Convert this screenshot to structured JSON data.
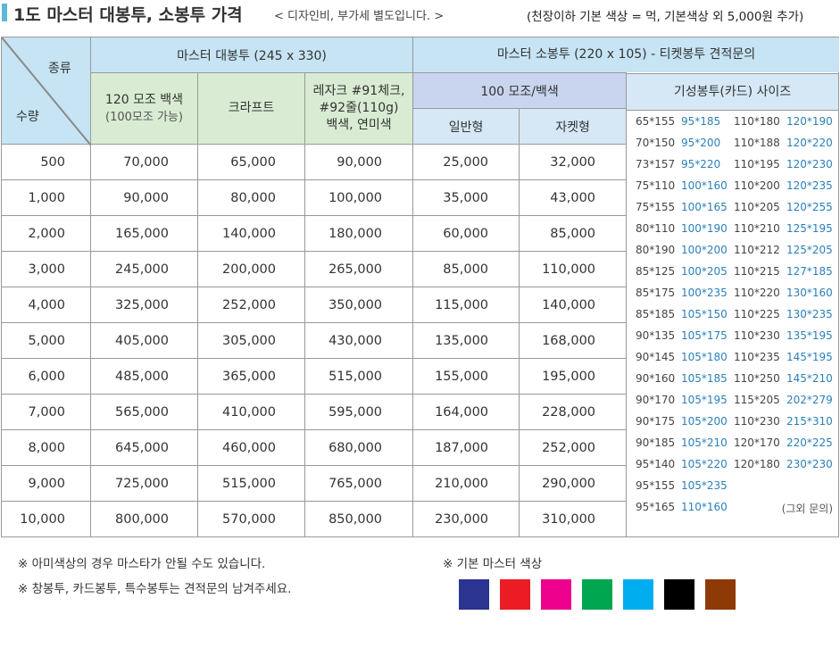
{
  "header": {
    "title": "1도 마스터 대봉투, 소봉투 가격",
    "subtitle": "< 디자인비, 부가세 별도입니다. >",
    "note": "(천장이하 기본 색상 = 먹, 기본색상 외 5,000원 추가)"
  },
  "table": {
    "corner_top": "종류",
    "corner_bottom": "수량",
    "group_large": "마스터 대봉투 (245 x 330)",
    "group_small": "마스터 소봉투 (220 x 105) - 티켓봉투 견적문의",
    "col_120": "120 모조 백색",
    "col_120_sub": "(100모조 가능)",
    "col_kraft": "크라프트",
    "col_lazak_1": "레자크 #91체크,",
    "col_lazak_2": "#92줄(110g)",
    "col_lazak_3": "백색, 연미색",
    "col_100": "100 모조/백색",
    "col_normal": "일반형",
    "col_jacket": "자켓형",
    "col_sizes": "기성봉투(카드) 사이즈",
    "rows": [
      {
        "qty": "500",
        "m120": "70,000",
        "kraft": "65,000",
        "lazak": "90,000",
        "normal": "25,000",
        "jacket": "32,000"
      },
      {
        "qty": "1,000",
        "m120": "90,000",
        "kraft": "80,000",
        "lazak": "100,000",
        "normal": "35,000",
        "jacket": "43,000"
      },
      {
        "qty": "2,000",
        "m120": "165,000",
        "kraft": "140,000",
        "lazak": "180,000",
        "normal": "60,000",
        "jacket": "85,000"
      },
      {
        "qty": "3,000",
        "m120": "245,000",
        "kraft": "200,000",
        "lazak": "265,000",
        "normal": "85,000",
        "jacket": "110,000"
      },
      {
        "qty": "4,000",
        "m120": "325,000",
        "kraft": "252,000",
        "lazak": "350,000",
        "normal": "115,000",
        "jacket": "140,000"
      },
      {
        "qty": "5,000",
        "m120": "405,000",
        "kraft": "305,000",
        "lazak": "430,000",
        "normal": "135,000",
        "jacket": "168,000"
      },
      {
        "qty": "6,000",
        "m120": "485,000",
        "kraft": "365,000",
        "lazak": "515,000",
        "normal": "155,000",
        "jacket": "195,000"
      },
      {
        "qty": "7,000",
        "m120": "565,000",
        "kraft": "410,000",
        "lazak": "595,000",
        "normal": "164,000",
        "jacket": "228,000"
      },
      {
        "qty": "8,000",
        "m120": "645,000",
        "kraft": "460,000",
        "lazak": "680,000",
        "normal": "187,000",
        "jacket": "252,000"
      },
      {
        "qty": "9,000",
        "m120": "725,000",
        "kraft": "515,000",
        "lazak": "765,000",
        "normal": "210,000",
        "jacket": "290,000"
      },
      {
        "qty": "10,000",
        "m120": "800,000",
        "kraft": "570,000",
        "lazak": "850,000",
        "normal": "230,000",
        "jacket": "310,000"
      }
    ]
  },
  "sizes": [
    [
      "65*155",
      "95*185",
      "110*180",
      "120*190"
    ],
    [
      "70*150",
      "95*200",
      "110*188",
      "120*220"
    ],
    [
      "73*157",
      "95*220",
      "110*195",
      "120*230"
    ],
    [
      "75*110",
      "100*160",
      "110*200",
      "120*235"
    ],
    [
      "75*155",
      "100*165",
      "110*205",
      "120*255"
    ],
    [
      "80*110",
      "100*190",
      "110*210",
      "125*195"
    ],
    [
      "80*190",
      "100*200",
      "110*212",
      "125*205"
    ],
    [
      "85*125",
      "100*205",
      "110*215",
      "127*185"
    ],
    [
      "85*175",
      "100*235",
      "110*220",
      "130*160"
    ],
    [
      "85*185",
      "105*150",
      "110*225",
      "130*235"
    ],
    [
      "90*135",
      "105*175",
      "110*230",
      "135*195"
    ],
    [
      "90*145",
      "105*180",
      "110*235",
      "145*195"
    ],
    [
      "90*160",
      "105*185",
      "110*250",
      "145*210"
    ],
    [
      "90*170",
      "105*195",
      "115*205",
      "202*279"
    ],
    [
      "90*175",
      "105*200",
      "110*230",
      "215*310"
    ],
    [
      "90*185",
      "105*210",
      "120*170",
      "220*225"
    ],
    [
      "95*140",
      "105*220",
      "120*180",
      "230*230"
    ],
    [
      "95*155",
      "105*235",
      "",
      ""
    ],
    [
      "95*165",
      "110*160",
      "",
      ""
    ]
  ],
  "sizes_other": "(그외 문의)",
  "notes": [
    "※ 아미색상의 경우 마스타가 안될 수도 있습니다.",
    "※ 창봉투, 카드봉투, 특수봉투는 견적문의 남겨주세요."
  ],
  "color_title": "※ 기본 마스터 색상",
  "colors": [
    {
      "name": "navy",
      "hex": "#2b3490"
    },
    {
      "name": "red",
      "hex": "#ec1c24"
    },
    {
      "name": "magenta",
      "hex": "#ec008c"
    },
    {
      "name": "green",
      "hex": "#00a650"
    },
    {
      "name": "sky-blue",
      "hex": "#00aeef"
    },
    {
      "name": "black",
      "hex": "#000000"
    },
    {
      "name": "brown",
      "hex": "#8e3a06"
    }
  ]
}
